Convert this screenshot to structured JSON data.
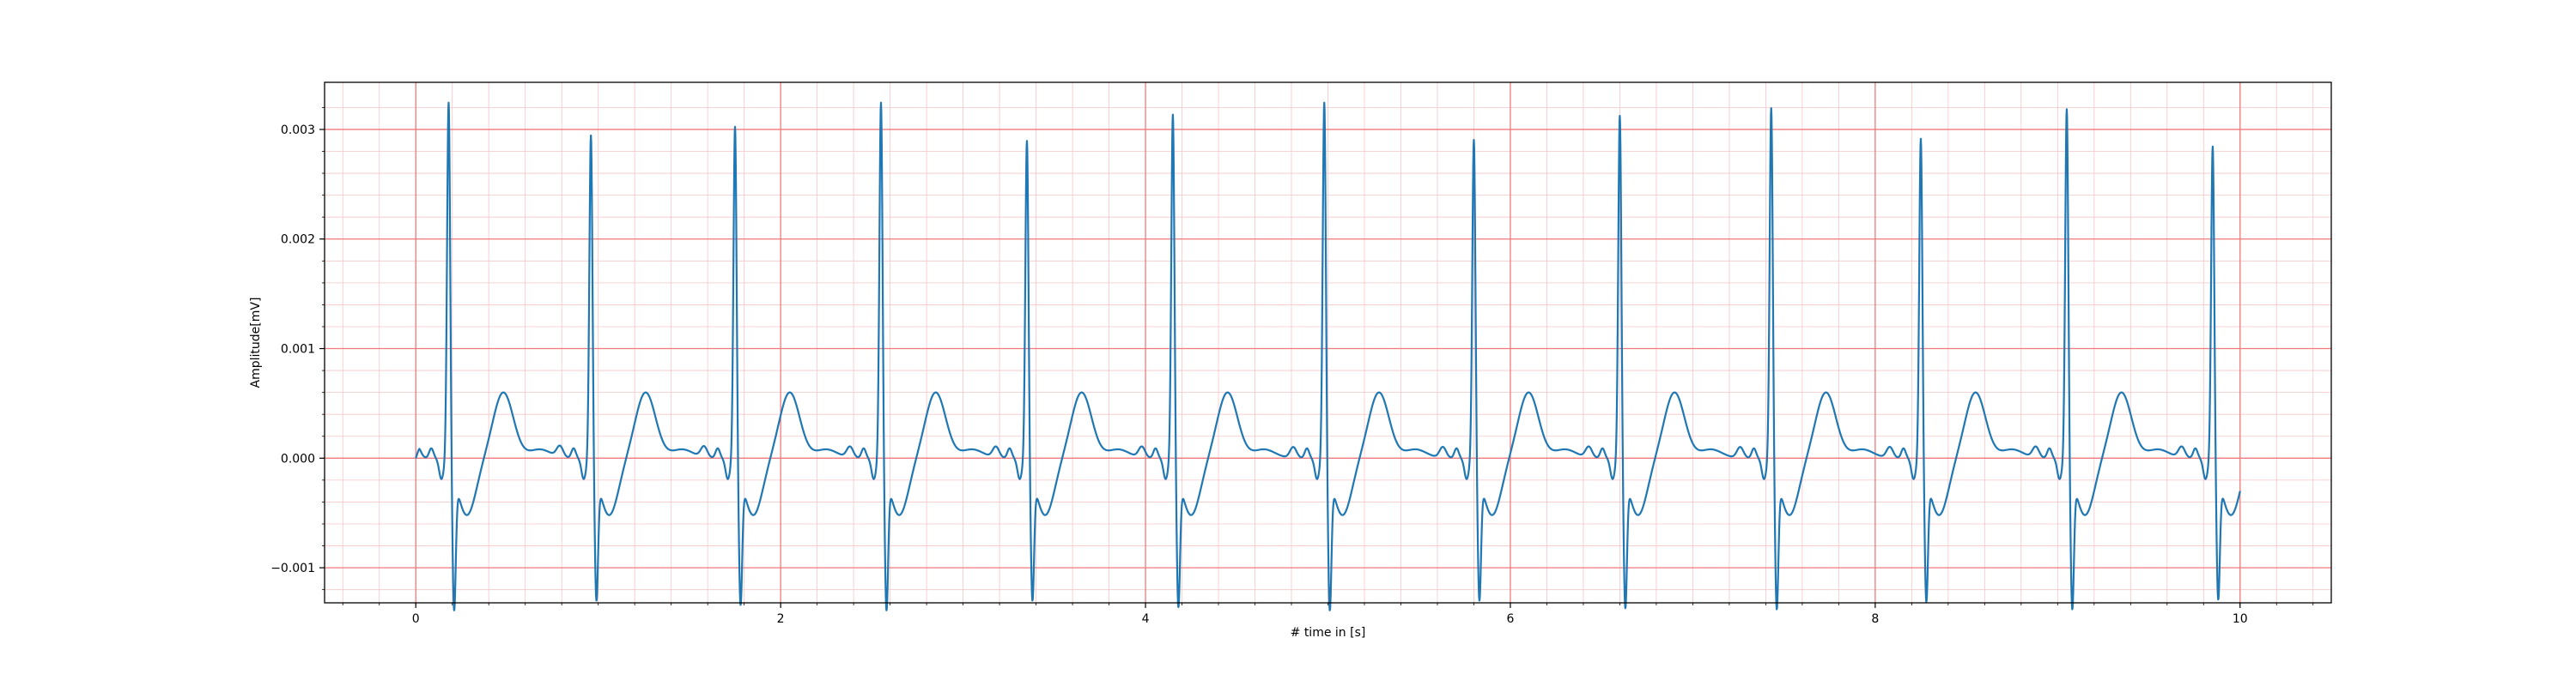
{
  "chart_data": {
    "type": "line",
    "title": "",
    "xlabel": "# time in [s]",
    "ylabel": "Amplitude[mV]",
    "xlim": [
      -0.5,
      10.5
    ],
    "ylim": [
      -0.00132,
      0.00343
    ],
    "grid": {
      "major": true,
      "minor": true,
      "major_color": "#f07a7a",
      "minor_color": "#f7c6c6"
    },
    "legend": "none",
    "x_ticks": [
      0,
      2,
      4,
      6,
      8,
      10
    ],
    "x_tick_labels": [
      "0",
      "2",
      "4",
      "6",
      "8",
      "10"
    ],
    "y_ticks": [
      -0.001,
      0.0,
      0.001,
      0.002,
      0.003
    ],
    "y_tick_labels": [
      "−0.001",
      "0.000",
      "0.001",
      "0.002",
      "0.003"
    ],
    "line_color": "#1f77b4",
    "series": [
      {
        "beat_times": [
          0.18,
          0.96,
          1.75,
          2.55,
          3.35,
          4.15,
          4.98,
          5.8,
          6.6,
          7.43,
          8.25,
          9.05,
          9.85
        ],
        "r_peaks": [
          0.00322,
          0.00292,
          0.003,
          0.00322,
          0.00287,
          0.00311,
          0.00322,
          0.00288,
          0.0031,
          0.00317,
          0.00289,
          0.00316,
          0.00282
        ],
        "s_troughs": [
          -0.0011,
          -0.00101,
          -0.00105,
          -0.0011,
          -0.00101,
          -0.00107,
          -0.0011,
          -0.00101,
          -0.00108,
          -0.00109,
          -0.00102,
          -0.00109,
          -0.001
        ],
        "t_wave_peak": 0.0004,
        "baseline": 0.0,
        "x_end": 10.0,
        "y_start": 0.0,
        "y_end": -0.0003
      }
    ]
  }
}
